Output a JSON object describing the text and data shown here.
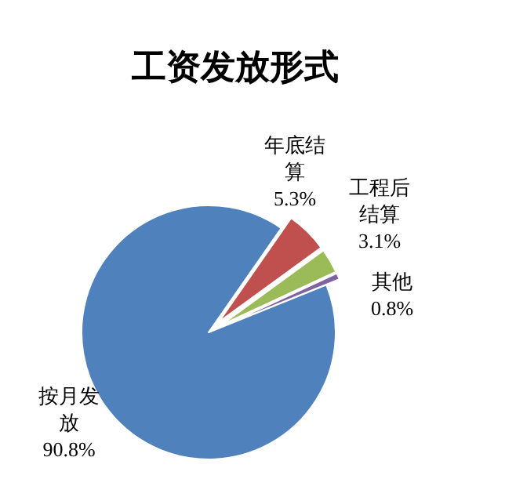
{
  "chart_data": {
    "type": "pie",
    "title": "工资发放形式",
    "categories": [
      "按月发放",
      "年底结算",
      "工程后结算",
      "其他"
    ],
    "values": [
      90.8,
      5.3,
      3.1,
      0.8
    ],
    "colors": [
      "#4f81bd",
      "#c0504d",
      "#9bbb59",
      "#8064a2"
    ],
    "value_labels": [
      "90.8%",
      "5.3%",
      "3.1%",
      "0.8%"
    ],
    "legend": false
  }
}
